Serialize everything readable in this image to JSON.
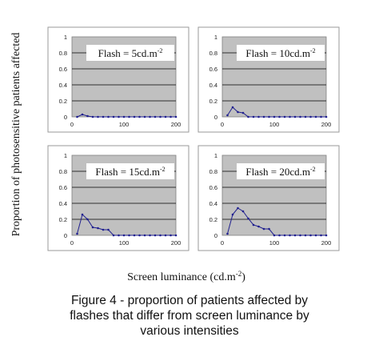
{
  "figure": {
    "ylabel": "Proportion of photosensitive patients affected",
    "xlabel": "Screen luminance (cd.m",
    "xlabel_sup": "-2",
    "xlabel_end": ")",
    "caption_lines": [
      "Figure 4 - proportion of patients affected by",
      "flashes that differ from screen luminance by",
      "various intensities"
    ]
  },
  "colors": {
    "plot_bg": "#c0c0c0",
    "line": "#1f1f8f",
    "grid": "#000000",
    "frame": "#9a9a9a"
  },
  "chart_data": [
    {
      "type": "line",
      "label": "Flash = 5cd.m",
      "label_sup": "-2",
      "x": [
        10,
        20,
        30,
        40,
        50,
        60,
        70,
        80,
        90,
        100,
        110,
        120,
        130,
        140,
        150,
        160,
        170,
        180,
        190,
        200
      ],
      "y": [
        0,
        0.03,
        0.01,
        0,
        0,
        0,
        0,
        0,
        0,
        0,
        0,
        0,
        0,
        0,
        0,
        0,
        0,
        0,
        0,
        0
      ],
      "ylim": [
        0,
        1
      ],
      "yticks": [
        "0",
        "0.2",
        "0.4",
        "0.6",
        "0.8",
        "1"
      ],
      "xlim": [
        0,
        200
      ],
      "xticks": [
        "0",
        "100",
        "200"
      ],
      "grid": true
    },
    {
      "type": "line",
      "label": "Flash = 10cd.m",
      "label_sup": "-2",
      "x": [
        10,
        20,
        30,
        40,
        50,
        60,
        70,
        80,
        90,
        100,
        110,
        120,
        130,
        140,
        150,
        160,
        170,
        180,
        190,
        200
      ],
      "y": [
        0.02,
        0.12,
        0.06,
        0.05,
        0,
        0,
        0,
        0,
        0,
        0,
        0,
        0,
        0,
        0,
        0,
        0,
        0,
        0,
        0,
        0
      ],
      "ylim": [
        0,
        1
      ],
      "yticks": [
        "0",
        "0.2",
        "0.4",
        "0.6",
        "0.8",
        "1"
      ],
      "xlim": [
        0,
        200
      ],
      "xticks": [
        "0",
        "100",
        "200"
      ],
      "grid": true
    },
    {
      "type": "line",
      "label": "Flash = 15cd.m",
      "label_sup": "-2",
      "x": [
        10,
        20,
        30,
        40,
        50,
        60,
        70,
        80,
        90,
        100,
        110,
        120,
        130,
        140,
        150,
        160,
        170,
        180,
        190,
        200
      ],
      "y": [
        0.02,
        0.26,
        0.2,
        0.1,
        0.09,
        0.07,
        0.07,
        0,
        0,
        0,
        0,
        0,
        0,
        0,
        0,
        0,
        0,
        0,
        0,
        0
      ],
      "ylim": [
        0,
        1
      ],
      "yticks": [
        "0",
        "0.2",
        "0.4",
        "0.6",
        "0.8",
        "1"
      ],
      "xlim": [
        0,
        200
      ],
      "xticks": [
        "0",
        "100",
        "200"
      ],
      "grid": true
    },
    {
      "type": "line",
      "label": "Flash = 20cd.m",
      "label_sup": "-2",
      "x": [
        10,
        20,
        30,
        40,
        50,
        60,
        70,
        80,
        90,
        100,
        110,
        120,
        130,
        140,
        150,
        160,
        170,
        180,
        190,
        200
      ],
      "y": [
        0.02,
        0.26,
        0.34,
        0.3,
        0.21,
        0.13,
        0.11,
        0.08,
        0.08,
        0,
        0,
        0,
        0,
        0,
        0,
        0,
        0,
        0,
        0,
        0
      ],
      "ylim": [
        0,
        1
      ],
      "yticks": [
        "0",
        "0.2",
        "0.4",
        "0.6",
        "0.8",
        "1"
      ],
      "xlim": [
        0,
        200
      ],
      "xticks": [
        "0",
        "100",
        "200"
      ],
      "grid": true
    }
  ]
}
